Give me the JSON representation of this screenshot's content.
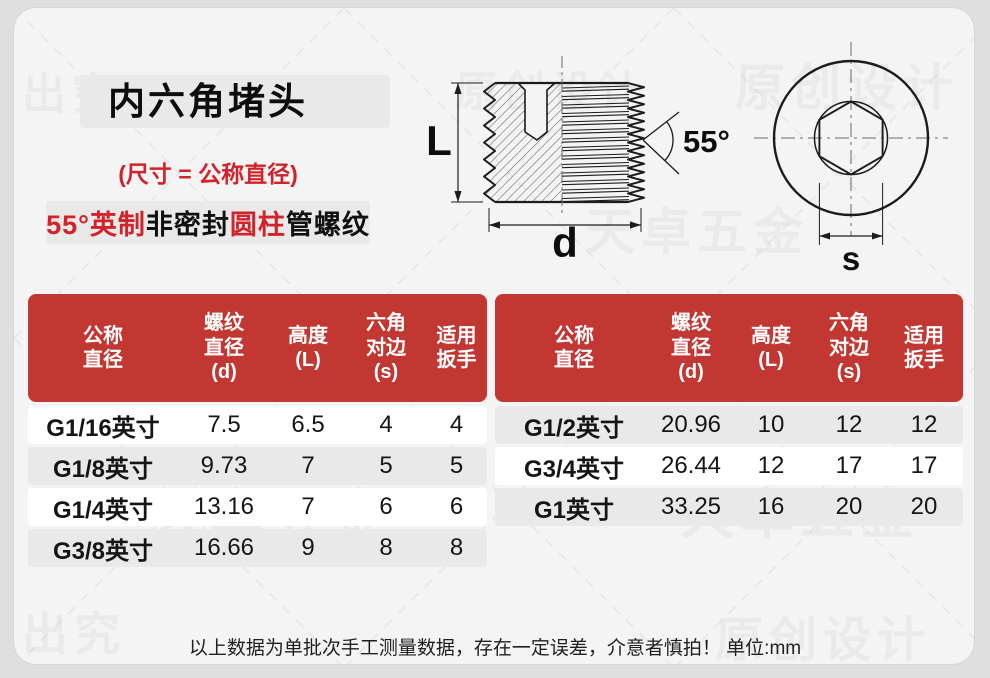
{
  "header": {
    "title": "内六角堵头",
    "subtitle": "(尺寸 = 公称直径)",
    "tag": {
      "part1": "55°英制",
      "part2": "非密封",
      "part3": "圆柱",
      "part4": "管螺纹"
    }
  },
  "diagram": {
    "height_label": "L",
    "diameter_label": "d",
    "angle_label": "55°",
    "flats_label": "s"
  },
  "table": {
    "columns": {
      "c1": "公称\n直径",
      "c2": "螺纹\n直径\n(d)",
      "c3": "高度\n(L)",
      "c4": "六角\n对边\n(s)",
      "c5": "适用\n扳手"
    },
    "left_rows": [
      {
        "name": "G1/16英寸",
        "thread_d": "7.5",
        "height_l": "6.5",
        "hex_s": "4",
        "wrench": "4"
      },
      {
        "name": "G1/8英寸",
        "thread_d": "9.73",
        "height_l": "7",
        "hex_s": "5",
        "wrench": "5"
      },
      {
        "name": "G1/4英寸",
        "thread_d": "13.16",
        "height_l": "7",
        "hex_s": "6",
        "wrench": "6"
      },
      {
        "name": "G3/8英寸",
        "thread_d": "16.66",
        "height_l": "9",
        "hex_s": "8",
        "wrench": "8"
      }
    ],
    "right_rows": [
      {
        "name": "G1/2英寸",
        "thread_d": "20.96",
        "height_l": "10",
        "hex_s": "12",
        "wrench": "12"
      },
      {
        "name": "G3/4英寸",
        "thread_d": "26.44",
        "height_l": "12",
        "hex_s": "17",
        "wrench": "17"
      },
      {
        "name": "G1英寸",
        "thread_d": "33.25",
        "height_l": "16",
        "hex_s": "20",
        "wrench": "20"
      }
    ]
  },
  "footer": {
    "note": "以上数据为单批次手工测量数据，存在一定误差，介意者慎拍！ 单位:mm"
  },
  "watermarks": {
    "brand": "天卓五金",
    "original": "原创设计",
    "corner": "出究"
  },
  "colors": {
    "banner_red": "#c23732",
    "accent_red": "#d2232a",
    "card_bg": "#f4f4f4",
    "outer_bg": "#dfdfdf",
    "row_gray": "#e9e9e9",
    "row_white": "#ffffff",
    "ink": "#1c1c1c"
  }
}
